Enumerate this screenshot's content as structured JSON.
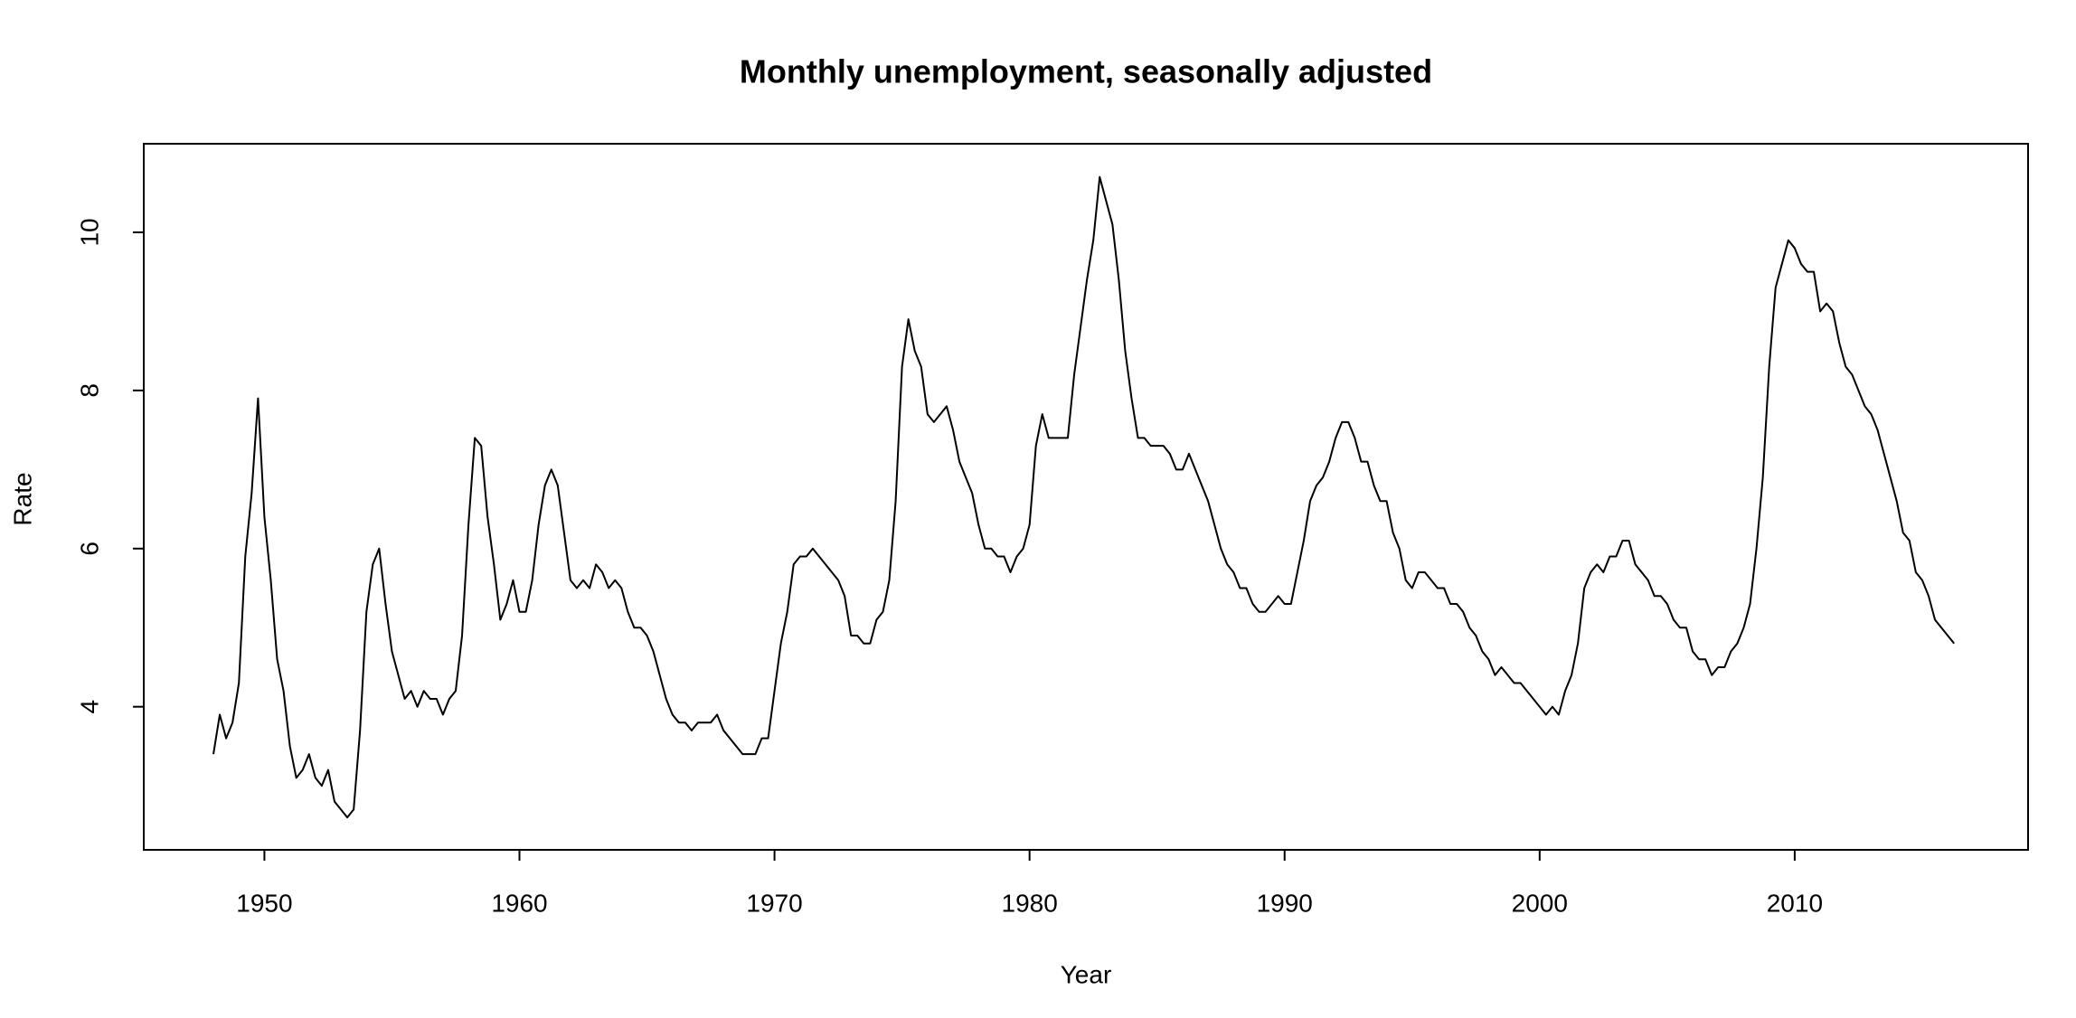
{
  "chart_data": {
    "type": "line",
    "title": "Monthly unemployment, seasonally adjusted",
    "xlabel": "Year",
    "ylabel": "Rate",
    "color": "#000000",
    "x": [
      1948,
      1948.25,
      1948.5,
      1948.75,
      1949,
      1949.25,
      1949.5,
      1949.75,
      1950,
      1950.25,
      1950.5,
      1950.75,
      1951,
      1951.25,
      1951.5,
      1951.75,
      1952,
      1952.25,
      1952.5,
      1952.75,
      1953,
      1953.25,
      1953.5,
      1953.75,
      1954,
      1954.25,
      1954.5,
      1954.75,
      1955,
      1955.25,
      1955.5,
      1955.75,
      1956,
      1956.25,
      1956.5,
      1956.75,
      1957,
      1957.25,
      1957.5,
      1957.75,
      1958,
      1958.25,
      1958.5,
      1958.75,
      1959,
      1959.25,
      1959.5,
      1959.75,
      1960,
      1960.25,
      1960.5,
      1960.75,
      1961,
      1961.25,
      1961.5,
      1961.75,
      1962,
      1962.25,
      1962.5,
      1962.75,
      1963,
      1963.25,
      1963.5,
      1963.75,
      1964,
      1964.25,
      1964.5,
      1964.75,
      1965,
      1965.25,
      1965.5,
      1965.75,
      1966,
      1966.25,
      1966.5,
      1966.75,
      1967,
      1967.25,
      1967.5,
      1967.75,
      1968,
      1968.25,
      1968.5,
      1968.75,
      1969,
      1969.25,
      1969.5,
      1969.75,
      1970,
      1970.25,
      1970.5,
      1970.75,
      1971,
      1971.25,
      1971.5,
      1971.75,
      1972,
      1972.25,
      1972.5,
      1972.75,
      1973,
      1973.25,
      1973.5,
      1973.75,
      1974,
      1974.25,
      1974.5,
      1974.75,
      1975,
      1975.25,
      1975.5,
      1975.75,
      1976,
      1976.25,
      1976.5,
      1976.75,
      1977,
      1977.25,
      1977.5,
      1977.75,
      1978,
      1978.25,
      1978.5,
      1978.75,
      1979,
      1979.25,
      1979.5,
      1979.75,
      1980,
      1980.25,
      1980.5,
      1980.75,
      1981,
      1981.25,
      1981.5,
      1981.75,
      1982,
      1982.25,
      1982.5,
      1982.75,
      1983,
      1983.25,
      1983.5,
      1983.75,
      1984,
      1984.25,
      1984.5,
      1984.75,
      1985,
      1985.25,
      1985.5,
      1985.75,
      1986,
      1986.25,
      1986.5,
      1986.75,
      1987,
      1987.25,
      1987.5,
      1987.75,
      1988,
      1988.25,
      1988.5,
      1988.75,
      1989,
      1989.25,
      1989.5,
      1989.75,
      1990,
      1990.25,
      1990.5,
      1990.75,
      1991,
      1991.25,
      1991.5,
      1991.75,
      1992,
      1992.25,
      1992.5,
      1992.75,
      1993,
      1993.25,
      1993.5,
      1993.75,
      1994,
      1994.25,
      1994.5,
      1994.75,
      1995,
      1995.25,
      1995.5,
      1995.75,
      1996,
      1996.25,
      1996.5,
      1996.75,
      1997,
      1997.25,
      1997.5,
      1997.75,
      1998,
      1998.25,
      1998.5,
      1998.75,
      1999,
      1999.25,
      1999.5,
      1999.75,
      2000,
      2000.25,
      2000.5,
      2000.75,
      2001,
      2001.25,
      2001.5,
      2001.75,
      2002,
      2002.25,
      2002.5,
      2002.75,
      2003,
      2003.25,
      2003.5,
      2003.75,
      2004,
      2004.25,
      2004.5,
      2004.75,
      2005,
      2005.25,
      2005.5,
      2005.75,
      2006,
      2006.25,
      2006.5,
      2006.75,
      2007,
      2007.25,
      2007.5,
      2007.75,
      2008,
      2008.25,
      2008.5,
      2008.75,
      2009,
      2009.25,
      2009.5,
      2009.75,
      2010,
      2010.25,
      2010.5,
      2010.75,
      2011,
      2011.25,
      2011.5,
      2011.75,
      2012,
      2012.25,
      2012.5,
      2012.75,
      2013,
      2013.25,
      2013.5,
      2013.75,
      2014,
      2014.25,
      2014.5,
      2014.75,
      2015,
      2015.25,
      2015.5,
      2015.75,
      2016,
      2016.25
    ],
    "values": [
      3.4,
      3.9,
      3.6,
      3.8,
      4.3,
      5.9,
      6.7,
      7.9,
      6.4,
      5.6,
      4.6,
      4.2,
      3.5,
      3.1,
      3.2,
      3.4,
      3.1,
      3.0,
      3.2,
      2.8,
      2.7,
      2.6,
      2.7,
      3.7,
      5.2,
      5.8,
      6.0,
      5.3,
      4.7,
      4.4,
      4.1,
      4.2,
      4.0,
      4.2,
      4.1,
      4.1,
      3.9,
      4.1,
      4.2,
      4.9,
      6.3,
      7.4,
      7.3,
      6.4,
      5.8,
      5.1,
      5.3,
      5.6,
      5.2,
      5.2,
      5.6,
      6.3,
      6.8,
      7.0,
      6.8,
      6.2,
      5.6,
      5.5,
      5.6,
      5.5,
      5.8,
      5.7,
      5.5,
      5.6,
      5.5,
      5.2,
      5.0,
      5.0,
      4.9,
      4.7,
      4.4,
      4.1,
      3.9,
      3.8,
      3.8,
      3.7,
      3.8,
      3.8,
      3.8,
      3.9,
      3.7,
      3.6,
      3.5,
      3.4,
      3.4,
      3.4,
      3.6,
      3.6,
      4.2,
      4.8,
      5.2,
      5.8,
      5.9,
      5.9,
      6.0,
      5.9,
      5.8,
      5.7,
      5.6,
      5.4,
      4.9,
      4.9,
      4.8,
      4.8,
      5.1,
      5.2,
      5.6,
      6.6,
      8.3,
      8.9,
      8.5,
      8.3,
      7.7,
      7.6,
      7.7,
      7.8,
      7.5,
      7.1,
      6.9,
      6.7,
      6.3,
      6.0,
      6.0,
      5.9,
      5.9,
      5.7,
      5.9,
      6.0,
      6.3,
      7.3,
      7.7,
      7.4,
      7.4,
      7.4,
      7.4,
      8.2,
      8.8,
      9.4,
      9.9,
      10.7,
      10.4,
      10.1,
      9.4,
      8.5,
      7.9,
      7.4,
      7.4,
      7.3,
      7.3,
      7.3,
      7.2,
      7.0,
      7.0,
      7.2,
      7.0,
      6.8,
      6.6,
      6.3,
      6.0,
      5.8,
      5.7,
      5.5,
      5.5,
      5.3,
      5.2,
      5.2,
      5.3,
      5.4,
      5.3,
      5.3,
      5.7,
      6.1,
      6.6,
      6.8,
      6.9,
      7.1,
      7.4,
      7.6,
      7.6,
      7.4,
      7.1,
      7.1,
      6.8,
      6.6,
      6.6,
      6.2,
      6.0,
      5.6,
      5.5,
      5.7,
      5.7,
      5.6,
      5.5,
      5.5,
      5.3,
      5.3,
      5.2,
      5.0,
      4.9,
      4.7,
      4.6,
      4.4,
      4.5,
      4.4,
      4.3,
      4.3,
      4.2,
      4.1,
      4.0,
      3.9,
      4.0,
      3.9,
      4.2,
      4.4,
      4.8,
      5.5,
      5.7,
      5.8,
      5.7,
      5.9,
      5.9,
      6.1,
      6.1,
      5.8,
      5.7,
      5.6,
      5.4,
      5.4,
      5.3,
      5.1,
      5.0,
      5.0,
      4.7,
      4.6,
      4.6,
      4.4,
      4.5,
      4.5,
      4.7,
      4.8,
      5.0,
      5.3,
      6.0,
      6.9,
      8.3,
      9.3,
      9.6,
      9.9,
      9.8,
      9.6,
      9.5,
      9.5,
      9.0,
      9.1,
      9.0,
      8.6,
      8.3,
      8.2,
      8.0,
      7.8,
      7.7,
      7.5,
      7.2,
      6.9,
      6.6,
      6.2,
      6.1,
      5.7,
      5.6,
      5.4,
      5.1,
      5.0,
      4.9,
      4.8
    ],
    "xlim": [
      1945.27,
      2019.15
    ],
    "ylim": [
      2.19,
      11.12
    ],
    "xticks": [
      1950,
      1960,
      1970,
      1980,
      1990,
      2000,
      2010
    ],
    "yticks": [
      4,
      6,
      8,
      10
    ]
  }
}
